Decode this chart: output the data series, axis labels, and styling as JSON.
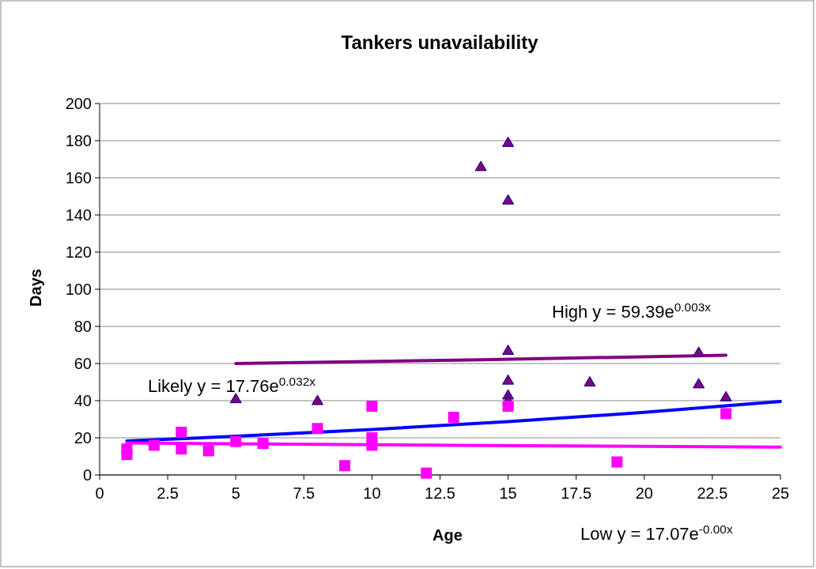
{
  "chart_data": {
    "type": "scatter",
    "title": "Tankers unavailability",
    "xlabel": "Age",
    "ylabel": "Days",
    "xlim": [
      0,
      25
    ],
    "xticks": [
      0,
      2.5,
      5,
      7.5,
      10,
      12.5,
      15,
      17.5,
      20,
      22.5,
      25
    ],
    "ylim": [
      0,
      200
    ],
    "yticks": [
      0,
      20,
      40,
      60,
      80,
      100,
      120,
      140,
      160,
      180,
      200
    ],
    "grid": "y",
    "series": [
      {
        "marker": "triangle",
        "color": "#800080",
        "x": [
          5,
          8,
          14,
          15,
          15,
          15,
          15,
          15,
          15,
          18,
          22,
          22,
          23
        ],
        "values": [
          41,
          40,
          166,
          179,
          148,
          67,
          51,
          43,
          40,
          50,
          66,
          49,
          42
        ]
      },
      {
        "marker": "square",
        "color": "#ff00ff",
        "x": [
          1,
          1,
          2,
          3,
          3,
          4,
          5,
          6,
          8,
          9,
          10,
          10,
          10,
          12,
          13,
          15,
          19,
          23
        ],
        "values": [
          14,
          11,
          16,
          23,
          14,
          13,
          18,
          17,
          25,
          5,
          37,
          20,
          16,
          1,
          31,
          37,
          7,
          33
        ]
      },
      {
        "type": "line",
        "marker": "none",
        "color": "#800080",
        "x": [
          5,
          14,
          23
        ],
        "values": [
          60,
          62,
          64.5
        ]
      },
      {
        "type": "line",
        "marker": "none",
        "color": "#0000ff",
        "x": [
          1,
          5,
          10,
          15,
          20,
          25
        ],
        "values": [
          18.3,
          20.8,
          24.5,
          28.7,
          33.7,
          39.6
        ]
      },
      {
        "type": "line",
        "marker": "none",
        "color": "#ff00ff",
        "x": [
          1,
          13,
          25
        ],
        "values": [
          17.2,
          16,
          15
        ]
      }
    ],
    "annotations": [
      "High y = 59.39e$^{0.003x}$",
      "Likely y = 17.76e$^{0.032x}$",
      "Low y = 17.07e$^{-0.00x}$"
    ]
  }
}
